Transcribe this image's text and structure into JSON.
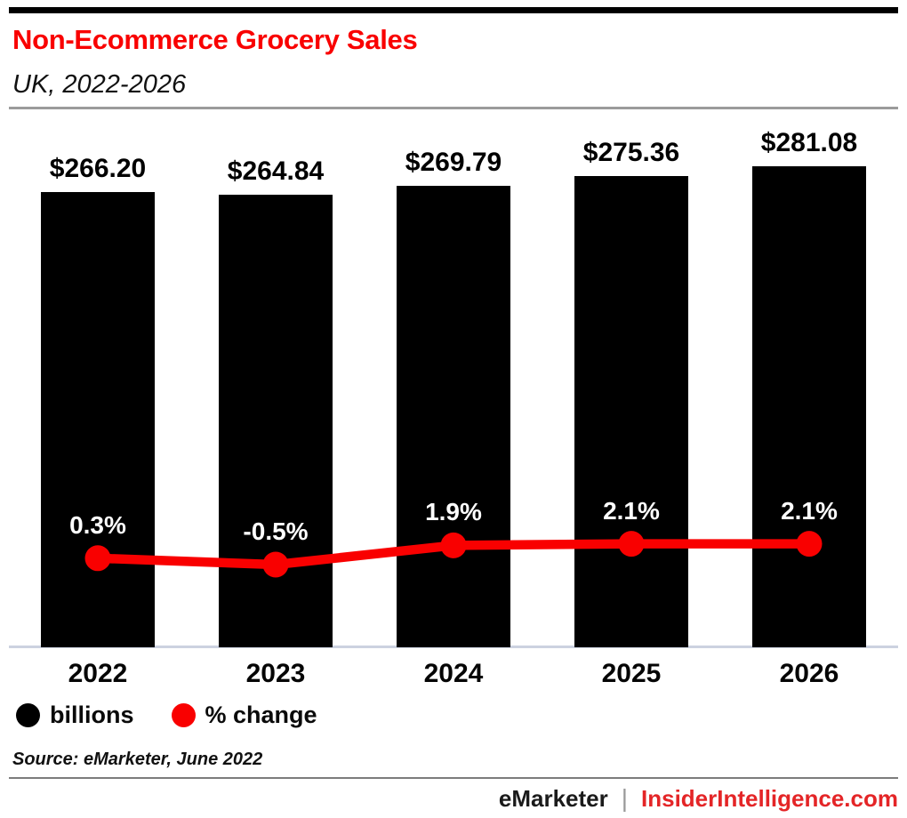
{
  "header": {
    "title": "Non-Ecommerce Grocery Sales",
    "subtitle": "UK, 2022-2026"
  },
  "chart_data": {
    "type": "combo-bar-line",
    "title": "Non-Ecommerce Grocery Sales",
    "subtitle": "UK, 2022-2026",
    "categories": [
      "2022",
      "2023",
      "2024",
      "2025",
      "2026"
    ],
    "series": [
      {
        "name": "billions",
        "type": "bar",
        "color": "#000000",
        "unit": "$ billions",
        "values": [
          266.2,
          264.84,
          269.79,
          275.36,
          281.08
        ],
        "labels": [
          "$266.20",
          "$264.84",
          "$269.79",
          "$275.36",
          "$281.08"
        ]
      },
      {
        "name": "% change",
        "type": "line",
        "color": "#f90000",
        "unit": "percent",
        "values": [
          0.3,
          -0.5,
          1.9,
          2.1,
          2.1
        ],
        "labels": [
          "0.3%",
          "-0.5%",
          "1.9%",
          "2.1%",
          "2.1%"
        ]
      }
    ],
    "value_labels_shown": true,
    "grid": false,
    "ylim_bars": [
      0,
      290
    ],
    "legend_position": "bottom-left"
  },
  "legend": {
    "items": [
      {
        "label": "billions",
        "color": "#000000",
        "icon": "circle-dot-icon"
      },
      {
        "label": "% change",
        "color": "#f90000",
        "icon": "circle-dot-icon"
      }
    ]
  },
  "source_note": "Source: eMarketer, June 2022",
  "footer": {
    "brand": "eMarketer",
    "separator": "|",
    "site": "InsiderIntelligence.com",
    "site_color": "#e42527"
  },
  "colors": {
    "accent_red": "#f90000",
    "bar_black": "#000000",
    "baseline": "#ccd2e0",
    "footer_red": "#e42527"
  }
}
